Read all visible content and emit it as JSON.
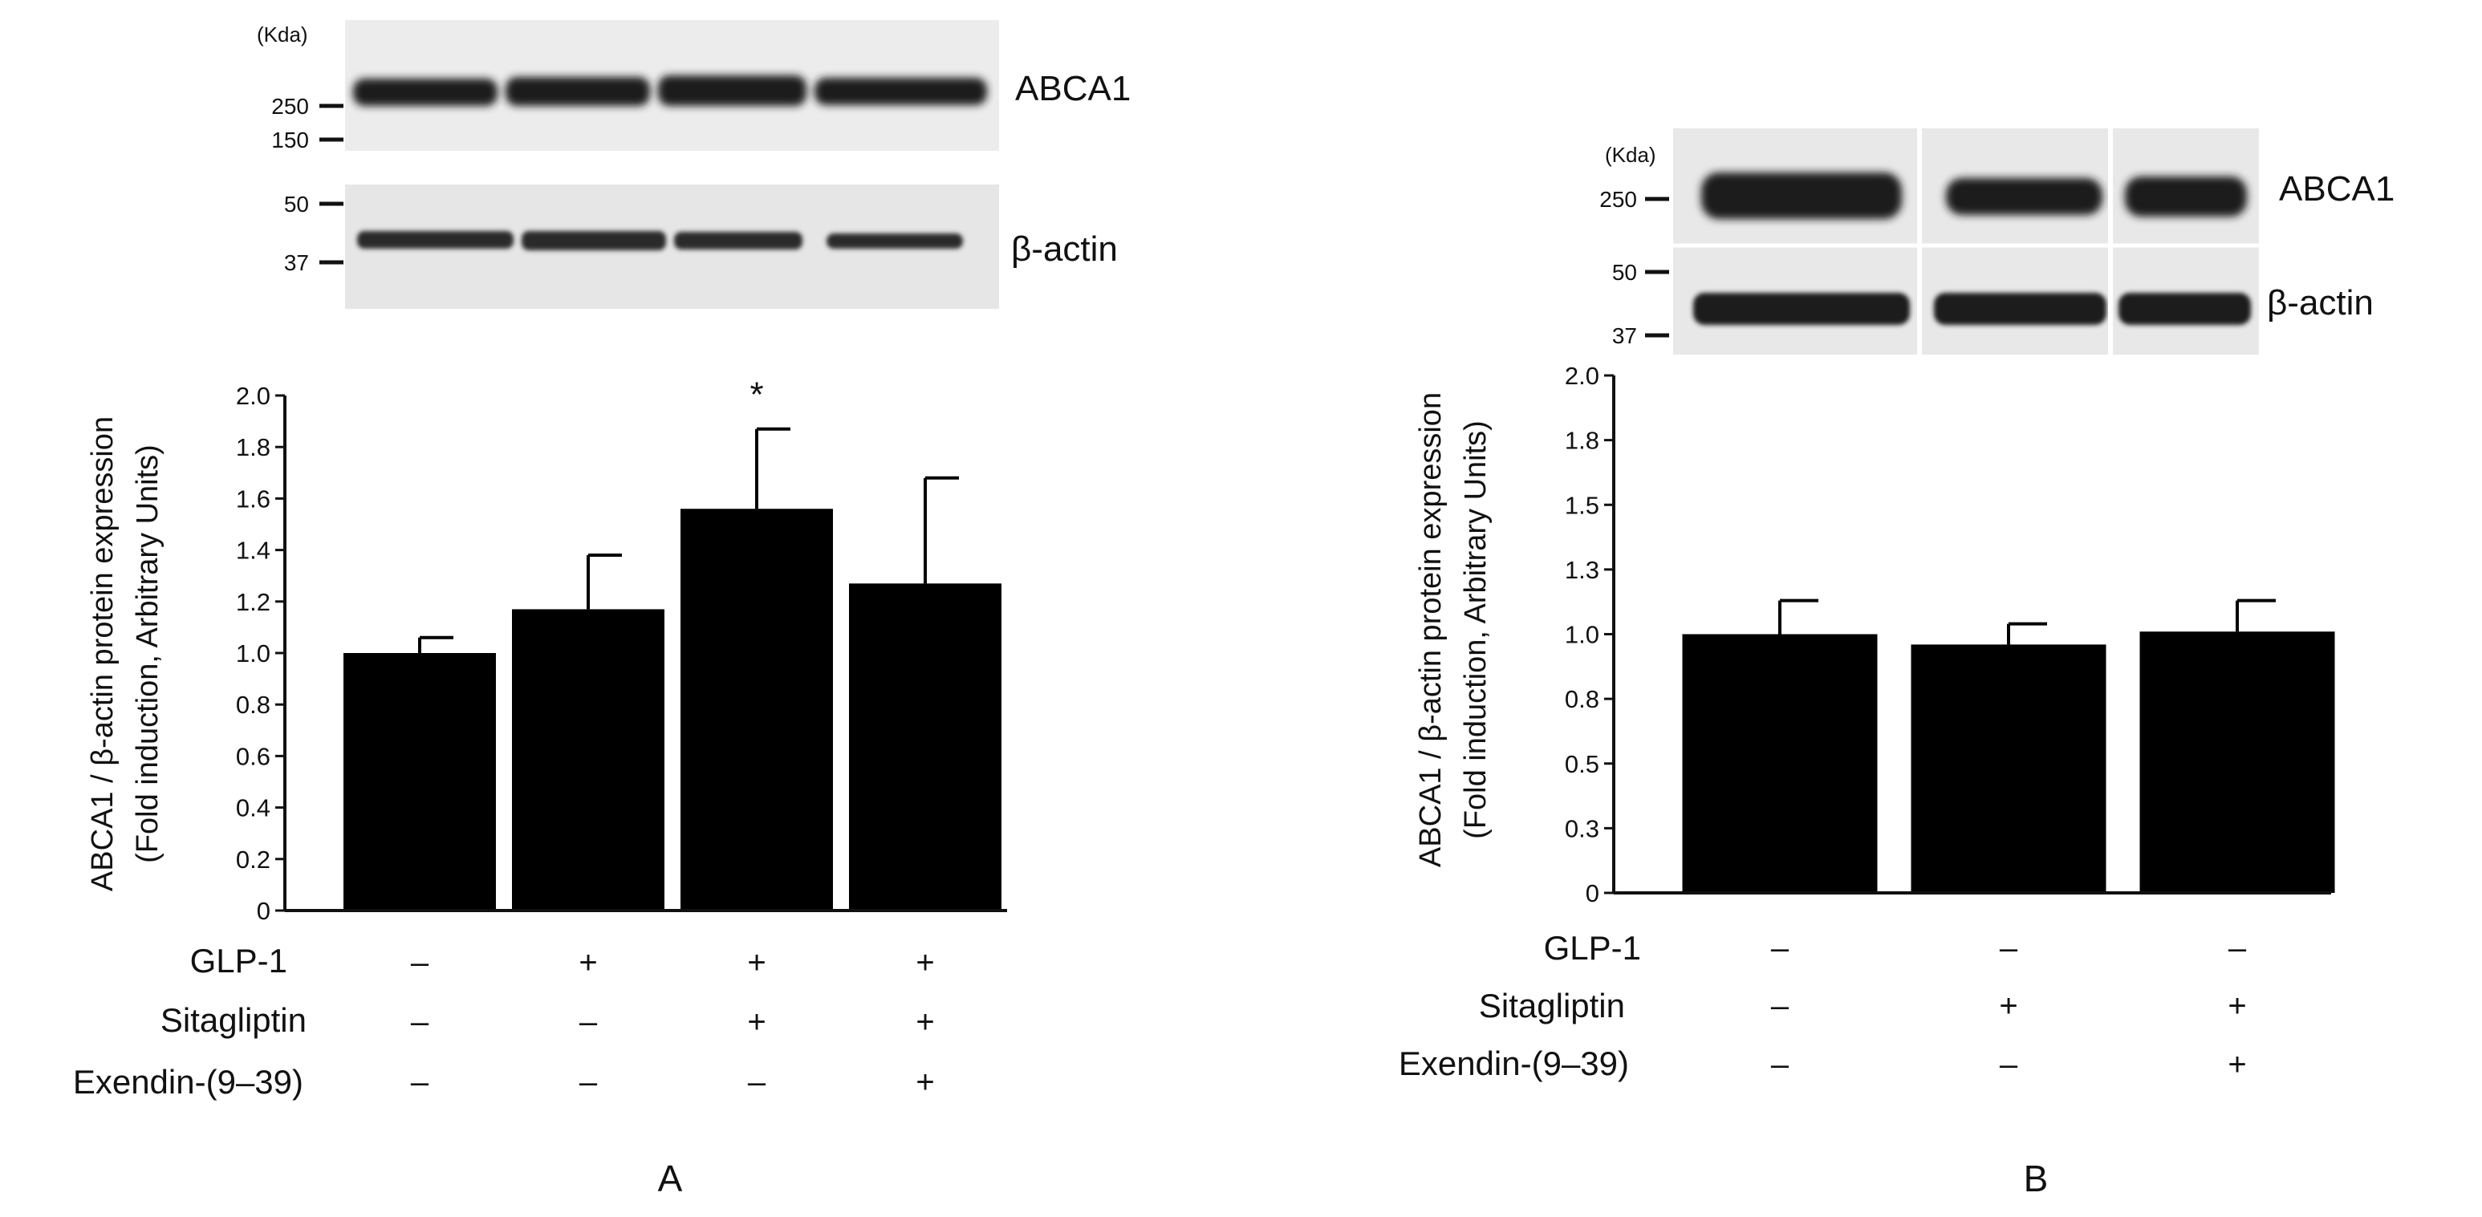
{
  "chart_data": [
    {
      "panel_label": "A",
      "type": "bar",
      "blot": {
        "unit_label": "(Kda)",
        "top_markers": [
          "250",
          "150"
        ],
        "bottom_markers": [
          "50",
          "37"
        ],
        "top_band_label": "ABCA1",
        "bottom_band_label": "β-actin"
      },
      "ylabel_line1": "ABCA1 / β-actin protein expression",
      "ylabel_line2": "(Fold induction, Arbitrary Units)",
      "ylim": [
        0,
        2.0
      ],
      "yticks": [
        "0",
        "0.2",
        "0.4",
        "0.6",
        "0.8",
        "1.0",
        "1.2",
        "1.4",
        "1.6",
        "1.8",
        "2.0"
      ],
      "values": [
        1.0,
        1.17,
        1.56,
        1.27
      ],
      "errors": [
        0.06,
        0.21,
        0.31,
        0.41
      ],
      "significance": [
        "",
        "",
        "*",
        ""
      ],
      "condition_labels": [
        "GLP-1",
        "Sitagliptin",
        "Exendin-(9–39)"
      ],
      "conditions": [
        [
          "–",
          "+",
          "+",
          "+"
        ],
        [
          "–",
          "–",
          "+",
          "+"
        ],
        [
          "–",
          "–",
          "–",
          "+"
        ]
      ]
    },
    {
      "panel_label": "B",
      "type": "bar",
      "blot": {
        "unit_label": "(Kda)",
        "top_markers": [
          "250"
        ],
        "bottom_markers": [
          "50",
          "37"
        ],
        "top_band_label": "ABCA1",
        "bottom_band_label": "β-actin"
      },
      "ylabel_line1": "ABCA1 / β-actin protein expression",
      "ylabel_line2": "(Fold induction, Arbitrary Units)",
      "ylim": [
        0,
        2.0
      ],
      "yticks": [
        "0",
        "0.3",
        "0.5",
        "0.8",
        "1.0",
        "1.3",
        "1.5",
        "1.8",
        "2.0"
      ],
      "values": [
        1.0,
        0.96,
        1.01
      ],
      "errors": [
        0.13,
        0.08,
        0.12
      ],
      "significance": [
        "",
        "",
        ""
      ],
      "condition_labels": [
        "GLP-1",
        "Sitagliptin",
        "Exendin-(9–39)"
      ],
      "conditions": [
        [
          "–",
          "–",
          "–"
        ],
        [
          "–",
          "+",
          "+"
        ],
        [
          "–",
          "–",
          "+"
        ]
      ]
    }
  ]
}
